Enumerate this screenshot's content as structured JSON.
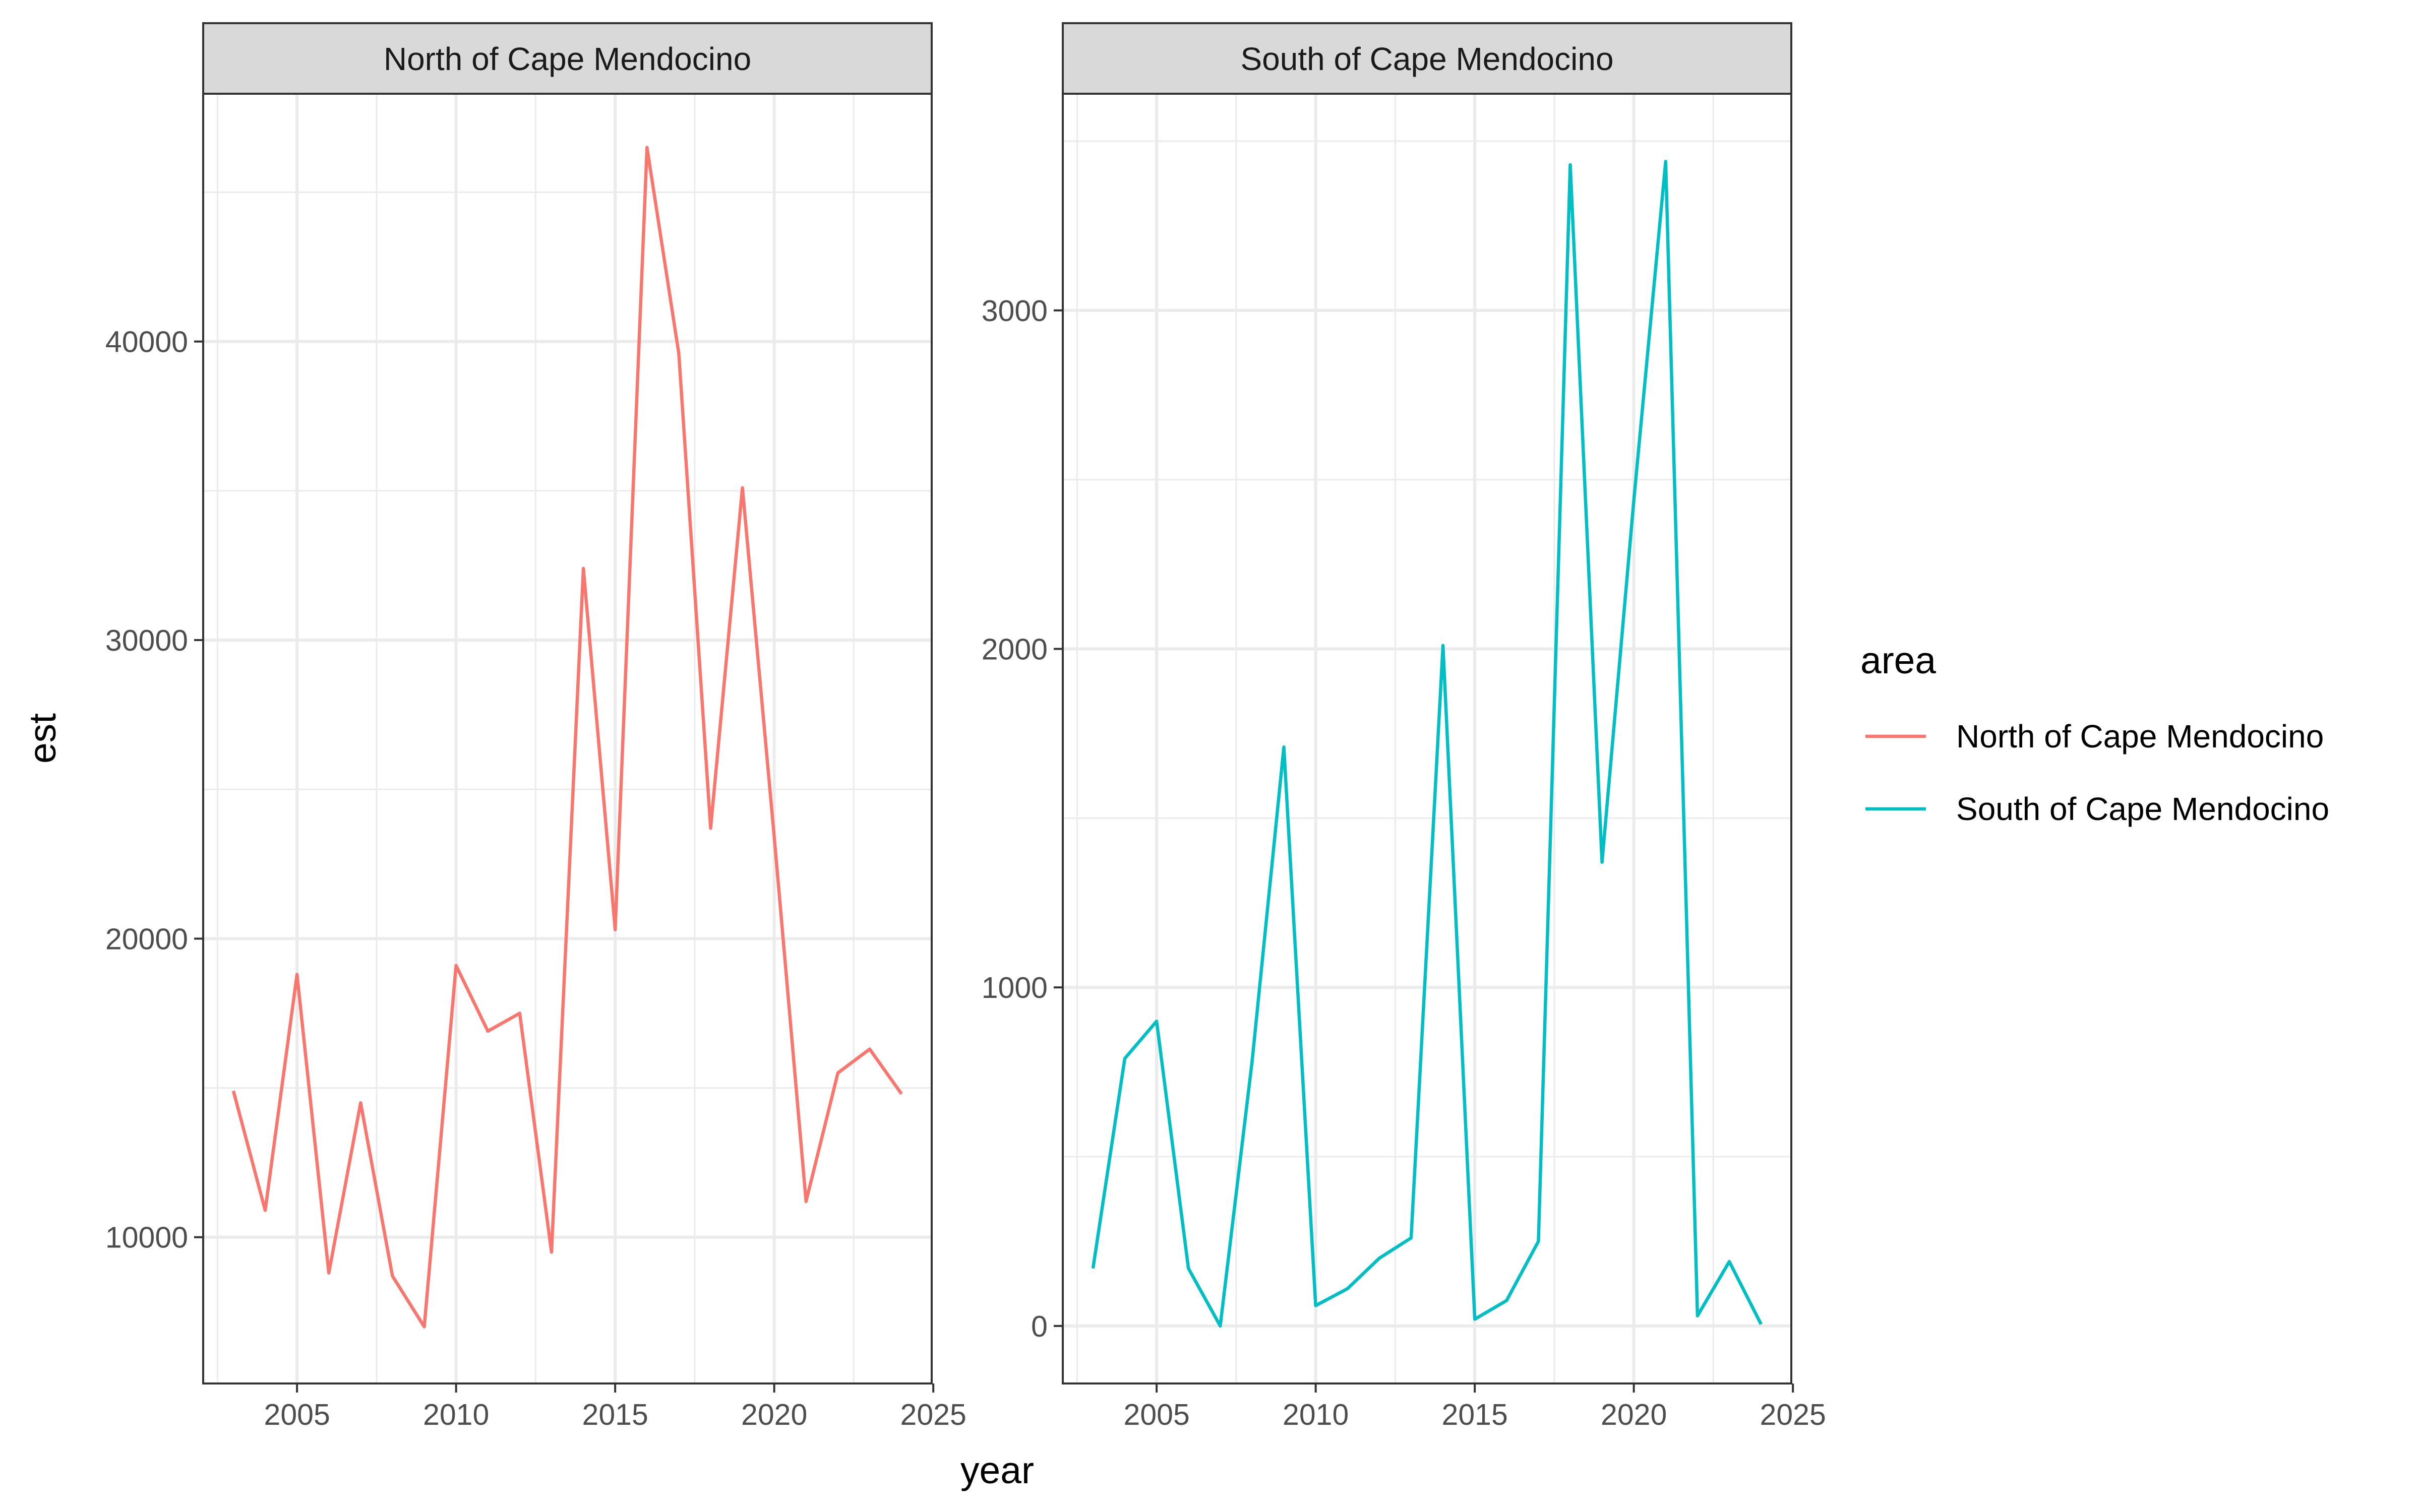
{
  "chart_data": {
    "type": "line",
    "layout": "facet",
    "xlabel": "year",
    "ylabel": "est",
    "x": [
      2003,
      2004,
      2005,
      2006,
      2007,
      2008,
      2009,
      2010,
      2011,
      2012,
      2013,
      2014,
      2015,
      2016,
      2017,
      2018,
      2019,
      2020,
      2021,
      2022,
      2023,
      2024
    ],
    "legend": {
      "title": "area",
      "placement": "right",
      "entries": [
        {
          "label": "North of Cape Mendocino",
          "color": "#F8766D"
        },
        {
          "label": "South of Cape Mendocino",
          "color": "#00BFC4"
        }
      ]
    },
    "panels": [
      {
        "strip": "North of Cape Mendocino",
        "color": "#F8766D",
        "xlim": [
          2002.05,
          2024.95
        ],
        "ylim": [
          5100,
          48300
        ],
        "x_ticks": [
          2005,
          2010,
          2015,
          2020,
          2025
        ],
        "x_tick_labels": [
          "2005",
          "2010",
          "2015",
          "2020",
          "2025"
        ],
        "y_ticks": [
          10000,
          20000,
          30000,
          40000
        ],
        "y_tick_labels": [
          "10000",
          "20000",
          "30000",
          "40000"
        ],
        "values": [
          14900,
          10900,
          18800,
          8800,
          14500,
          8700,
          7000,
          19100,
          16900,
          17500,
          9500,
          32400,
          20300,
          46500,
          39600,
          23700,
          35100,
          23400,
          11200,
          15500,
          16300,
          14800
        ]
      },
      {
        "strip": "South of Cape Mendocino",
        "color": "#00BFC4",
        "xlim": [
          2002.05,
          2024.95
        ],
        "ylim": [
          -170,
          3640
        ],
        "x_ticks": [
          2005,
          2010,
          2015,
          2020,
          2025
        ],
        "x_tick_labels": [
          "2005",
          "2010",
          "2015",
          "2020",
          "2025"
        ],
        "y_ticks": [
          0,
          1000,
          2000,
          3000
        ],
        "y_tick_labels": [
          "0",
          "1000",
          "2000",
          "3000"
        ],
        "values": [
          170,
          790,
          900,
          170,
          0,
          780,
          1710,
          60,
          110,
          200,
          260,
          2010,
          20,
          75,
          250,
          3430,
          1370,
          2440,
          3440,
          30,
          190,
          5
        ]
      }
    ]
  }
}
